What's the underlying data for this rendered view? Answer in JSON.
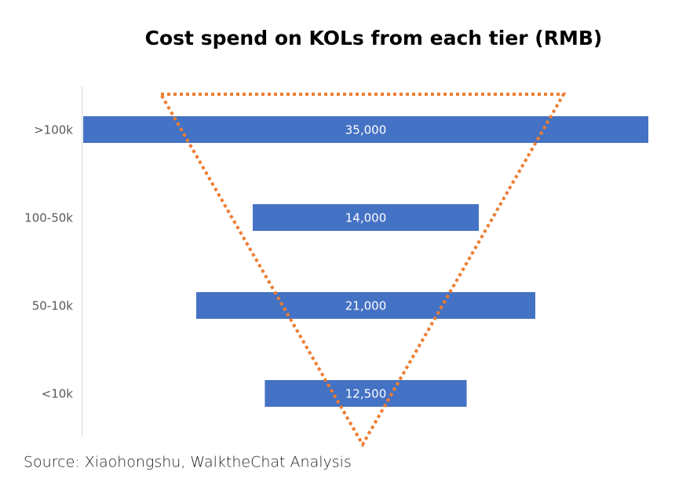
{
  "chart_data": {
    "type": "funnel",
    "title": "Cost spend on KOLs from each tier (RMB)",
    "categories": [
      ">100k",
      "100-50k",
      "50-10k",
      "<10k"
    ],
    "values": [
      35000,
      14000,
      21000,
      12500
    ],
    "value_labels": [
      "35,000",
      "14,000",
      "21,000",
      "12,500"
    ],
    "color": "#4472c4",
    "source": "Source: Xiaohongshu, WalktheChat Analysis"
  }
}
